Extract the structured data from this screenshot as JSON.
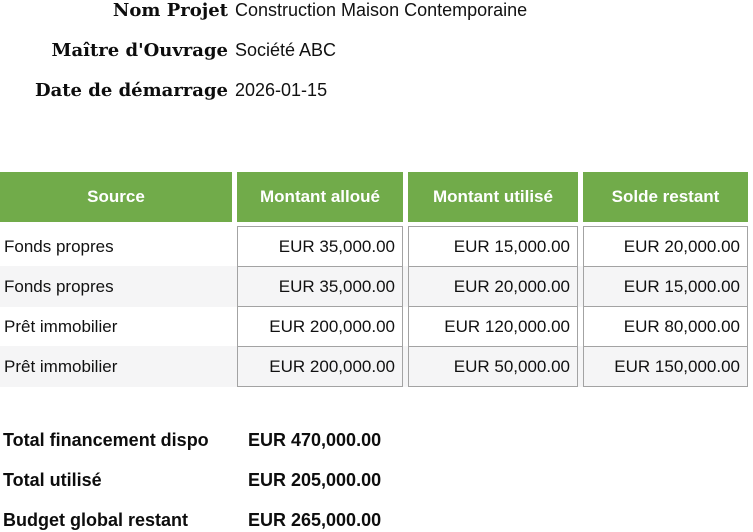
{
  "info": {
    "rows": [
      {
        "label": "Nom Projet",
        "value": "Construction Maison Contemporaine"
      },
      {
        "label": "Maître d'Ouvrage",
        "value": "Société ABC"
      },
      {
        "label": "Date de démarrage",
        "value": "2026-01-15"
      }
    ]
  },
  "table": {
    "headers": [
      "Source",
      "Montant alloué",
      "Montant utilisé",
      "Solde restant"
    ],
    "rows": [
      {
        "source": "Fonds propres",
        "alloue": "EUR 35,000.00",
        "utilise": "EUR 15,000.00",
        "solde": "EUR 20,000.00"
      },
      {
        "source": "Fonds propres",
        "alloue": "EUR 35,000.00",
        "utilise": "EUR 20,000.00",
        "solde": "EUR 15,000.00"
      },
      {
        "source": "Prêt immobilier",
        "alloue": "EUR 200,000.00",
        "utilise": "EUR 120,000.00",
        "solde": "EUR 80,000.00"
      },
      {
        "source": "Prêt immobilier",
        "alloue": "EUR 200,000.00",
        "utilise": "EUR 50,000.00",
        "solde": "EUR 150,000.00"
      }
    ]
  },
  "totals": {
    "rows": [
      {
        "label": "Total financement dispo",
        "value": "EUR 470,000.00"
      },
      {
        "label": "Total utilisé",
        "value": "EUR 205,000.00"
      },
      {
        "label": "Budget global restant",
        "value": "EUR 265,000.00"
      }
    ]
  },
  "colors": {
    "header_green": "#71ab4a",
    "stripe_gray": "#f5f5f6",
    "cell_border": "#a3a3a3"
  }
}
